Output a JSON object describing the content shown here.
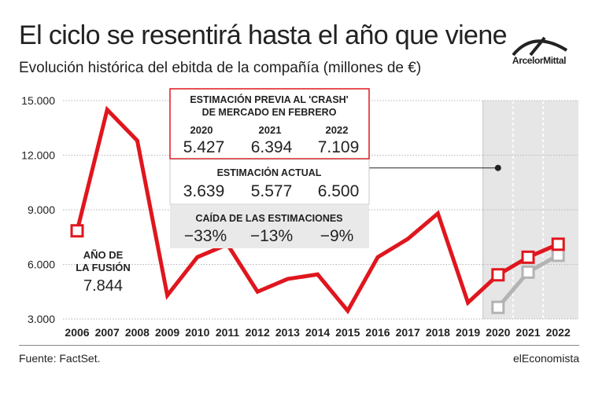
{
  "title": "El ciclo se resentirá hasta el año que viene",
  "subtitle": "Evolución histórica del ebitda de la compañía (millones de €)",
  "logo": {
    "text": "ArcelorMittal"
  },
  "footer": {
    "source": "Fuente: FactSet.",
    "brand": "elEconomista"
  },
  "chart_data": {
    "type": "line",
    "x": [
      "2006",
      "2007",
      "2008",
      "2009",
      "2010",
      "2011",
      "2012",
      "2013",
      "2014",
      "2015",
      "2016",
      "2017",
      "2018",
      "2019",
      "2020",
      "2021",
      "2022"
    ],
    "ylim": [
      3000,
      15000
    ],
    "yticks": [
      3000,
      6000,
      9000,
      12000,
      15000
    ],
    "ytick_labels": [
      "3.000",
      "6.000",
      "9.000",
      "12.000",
      "15.000"
    ],
    "grid": "horizontal",
    "shaded_years": [
      "2020",
      "2021",
      "2022"
    ],
    "series": [
      {
        "color": "#e0161e",
        "values": [
          7844,
          14500,
          12800,
          4300,
          6400,
          7100,
          4500,
          5200,
          5450,
          3450,
          6400,
          7400,
          8800,
          3900,
          5427,
          6394,
          7109
        ],
        "markers": [
          "2006",
          "2020",
          "2021",
          "2022"
        ]
      },
      {
        "color": "#b3b3b3",
        "values": [
          null,
          null,
          null,
          null,
          null,
          null,
          null,
          null,
          null,
          null,
          null,
          null,
          null,
          null,
          3639,
          5577,
          6500
        ],
        "markers": [
          "2020",
          "2021",
          "2022"
        ]
      }
    ],
    "annotations": {
      "fusion": {
        "label_line1": "AÑO DE",
        "label_line2": "LA FUSIÓN",
        "value": "7.844"
      },
      "previous": {
        "title_line1": "ESTIMACIÓN PREVIA AL 'CRASH'",
        "title_line2": "DE MERCADO  EN FEBRERO",
        "years": [
          "2020",
          "2021",
          "2022"
        ],
        "values": [
          "5.427",
          "6.394",
          "7.109"
        ],
        "border_color": "#e0161e"
      },
      "current": {
        "title": "ESTIMACIÓN ACTUAL",
        "values": [
          "3.639",
          "5.577",
          "6.500"
        ]
      },
      "drop": {
        "title": "CAÍDA DE LAS ESTIMACIONES",
        "values": [
          "−33%",
          "−13%",
          "−9%"
        ]
      }
    }
  }
}
